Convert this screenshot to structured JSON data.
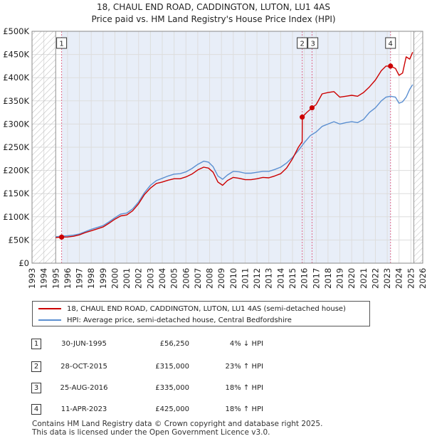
{
  "title": {
    "line1": "18, CHAUL END ROAD, CADDINGTON, LUTON, LU1 4AS",
    "line2": "Price paid vs. HM Land Registry's House Price Index (HPI)"
  },
  "colors": {
    "property": "#cc0000",
    "hpi": "#5b8fd1",
    "sale_vline": "#e06a8a",
    "hatch": "#bbbbbb",
    "grid": "#dddddd",
    "shade": "#e8eef8"
  },
  "chart_data": {
    "type": "line",
    "xlim": [
      1993,
      2026
    ],
    "ylim": [
      0,
      500000
    ],
    "x_ticks": [
      1993,
      1994,
      1995,
      1996,
      1997,
      1998,
      1999,
      2000,
      2001,
      2002,
      2003,
      2004,
      2005,
      2006,
      2007,
      2008,
      2009,
      2010,
      2011,
      2012,
      2013,
      2014,
      2015,
      2016,
      2017,
      2018,
      2019,
      2020,
      2021,
      2022,
      2023,
      2024,
      2025,
      2026
    ],
    "y_ticks": [
      0,
      50000,
      100000,
      150000,
      200000,
      250000,
      300000,
      350000,
      400000,
      450000,
      500000
    ],
    "y_tick_labels": [
      "£0",
      "£50K",
      "£100K",
      "£150K",
      "£200K",
      "£250K",
      "£300K",
      "£350K",
      "£400K",
      "£450K",
      "£500K"
    ],
    "hatched_before": 1995.0,
    "hatched_after": 2025.25,
    "series": [
      {
        "name": "18, CHAUL END ROAD, CADDINGTON, LUTON, LU1 4AS (semi-detached house)",
        "color": "#cc0000",
        "x": [
          1995.0,
          1995.5,
          1996.0,
          1996.5,
          1997.0,
          1997.5,
          1998.0,
          1998.5,
          1999.0,
          1999.5,
          2000.0,
          2000.5,
          2001.0,
          2001.5,
          2002.0,
          2002.5,
          2003.0,
          2003.5,
          2004.0,
          2004.5,
          2005.0,
          2005.5,
          2006.0,
          2006.5,
          2007.0,
          2007.5,
          2007.9,
          2008.3,
          2008.7,
          2009.1,
          2009.5,
          2010.0,
          2010.5,
          2011.0,
          2011.5,
          2012.0,
          2012.5,
          2013.0,
          2013.5,
          2014.0,
          2014.5,
          2015.0,
          2015.5,
          2015.82,
          2015.83,
          2016.2,
          2016.65,
          2017.0,
          2017.5,
          2018.0,
          2018.5,
          2019.0,
          2019.5,
          2020.0,
          2020.5,
          2021.0,
          2021.5,
          2022.0,
          2022.5,
          2022.9,
          2023.28,
          2023.7,
          2024.0,
          2024.3,
          2024.6,
          2024.9,
          2025.15
        ],
        "y": [
          55000,
          56250,
          56500,
          58000,
          61000,
          66000,
          70000,
          74000,
          78000,
          86000,
          95000,
          102000,
          104000,
          113000,
          128000,
          148000,
          162000,
          172000,
          175000,
          179000,
          182000,
          182000,
          186000,
          192000,
          201000,
          207000,
          205000,
          196000,
          175000,
          168000,
          178000,
          185000,
          183000,
          180000,
          180000,
          182000,
          185000,
          184000,
          188000,
          193000,
          205000,
          225000,
          250000,
          262000,
          315000,
          325000,
          335000,
          342000,
          365000,
          368000,
          370000,
          358000,
          360000,
          362000,
          360000,
          368000,
          380000,
          395000,
          415000,
          425000,
          425000,
          420000,
          405000,
          410000,
          445000,
          440000,
          455000
        ]
      },
      {
        "name": "HPI: Average price, semi-detached house, Central Bedfordshire",
        "color": "#5b8fd1",
        "x": [
          1995.0,
          1995.5,
          1996.0,
          1996.5,
          1997.0,
          1997.5,
          1998.0,
          1998.5,
          1999.0,
          1999.5,
          2000.0,
          2000.5,
          2001.0,
          2001.5,
          2002.0,
          2002.5,
          2003.0,
          2003.5,
          2004.0,
          2004.5,
          2005.0,
          2005.5,
          2006.0,
          2006.5,
          2007.0,
          2007.5,
          2007.9,
          2008.3,
          2008.7,
          2009.1,
          2009.5,
          2010.0,
          2010.5,
          2011.0,
          2011.5,
          2012.0,
          2012.5,
          2013.0,
          2013.5,
          2014.0,
          2014.5,
          2015.0,
          2015.5,
          2016.0,
          2016.5,
          2017.0,
          2017.5,
          2018.0,
          2018.5,
          2019.0,
          2019.5,
          2020.0,
          2020.5,
          2021.0,
          2021.5,
          2022.0,
          2022.5,
          2022.9,
          2023.28,
          2023.7,
          2024.0,
          2024.3,
          2024.6,
          2024.9,
          2025.15
        ],
        "y": [
          57000,
          58500,
          59000,
          60500,
          63000,
          68000,
          73000,
          77000,
          81000,
          89000,
          98000,
          106000,
          108000,
          117000,
          132000,
          152000,
          168000,
          178000,
          183000,
          188000,
          192000,
          193000,
          197000,
          204000,
          213000,
          220000,
          218000,
          208000,
          188000,
          181000,
          190000,
          198000,
          197000,
          194000,
          194000,
          196000,
          198000,
          198000,
          202000,
          207000,
          216000,
          228000,
          243000,
          260000,
          275000,
          283000,
          295000,
          300000,
          305000,
          300000,
          303000,
          305000,
          303000,
          310000,
          325000,
          335000,
          350000,
          358000,
          360000,
          358000,
          345000,
          348000,
          358000,
          375000,
          385000
        ]
      }
    ],
    "sales": [
      {
        "marker": "1",
        "x": 1995.5,
        "price": 56250,
        "date": "30-JUN-1995",
        "price_label": "£56,250",
        "hpi_label": "4% ↓ HPI"
      },
      {
        "marker": "2",
        "x": 2015.82,
        "price": 315000,
        "date": "28-OCT-2015",
        "price_label": "£315,000",
        "hpi_label": "23% ↑ HPI"
      },
      {
        "marker": "3",
        "x": 2016.65,
        "price": 335000,
        "date": "25-AUG-2016",
        "price_label": "£335,000",
        "hpi_label": "18% ↑ HPI"
      },
      {
        "marker": "4",
        "x": 2023.28,
        "price": 425000,
        "date": "11-APR-2023",
        "price_label": "£425,000",
        "hpi_label": "18% ↑ HPI"
      }
    ]
  },
  "legend": {
    "property_label": "18, CHAUL END ROAD, CADDINGTON, LUTON, LU1 4AS (semi-detached house)",
    "hpi_label": "HPI: Average price, semi-detached house, Central Bedfordshire"
  },
  "footer": {
    "line1": "Contains HM Land Registry data © Crown copyright and database right 2025.",
    "line2": "This data is licensed under the Open Government Licence v3.0."
  }
}
